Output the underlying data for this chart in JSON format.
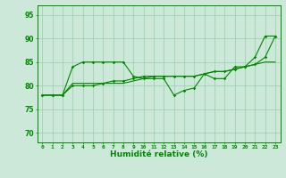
{
  "xlabel": "Humidité relative (%)",
  "ylabel": "",
  "xlim": [
    -0.5,
    23.5
  ],
  "ylim": [
    68,
    97
  ],
  "yticks": [
    70,
    75,
    80,
    85,
    90,
    95
  ],
  "xticks": [
    0,
    1,
    2,
    3,
    4,
    5,
    6,
    7,
    8,
    9,
    10,
    11,
    12,
    13,
    14,
    15,
    16,
    17,
    18,
    19,
    20,
    21,
    22,
    23
  ],
  "background_color": "#cce8d8",
  "grid_color": "#99ccaa",
  "line_color": "#008800",
  "line1": [
    78,
    78,
    78,
    84,
    85,
    85,
    85,
    85,
    85,
    82,
    81.5,
    81.5,
    81.5,
    78,
    79,
    79.5,
    82.5,
    81.5,
    81.5,
    84,
    84,
    86,
    90.5,
    90.5
  ],
  "line2": [
    78,
    78,
    78,
    80.5,
    80.5,
    80.5,
    80.5,
    80.5,
    80.5,
    81,
    81.5,
    82,
    82,
    82,
    82,
    82,
    82.5,
    83,
    83,
    83.5,
    84,
    84.5,
    85,
    85
  ],
  "line3": [
    78,
    78,
    78,
    80,
    80,
    80,
    80.5,
    81,
    81,
    81.5,
    82,
    82,
    82,
    82,
    82,
    82,
    82.5,
    83,
    83,
    83.5,
    84,
    84.5,
    86,
    90.5
  ]
}
